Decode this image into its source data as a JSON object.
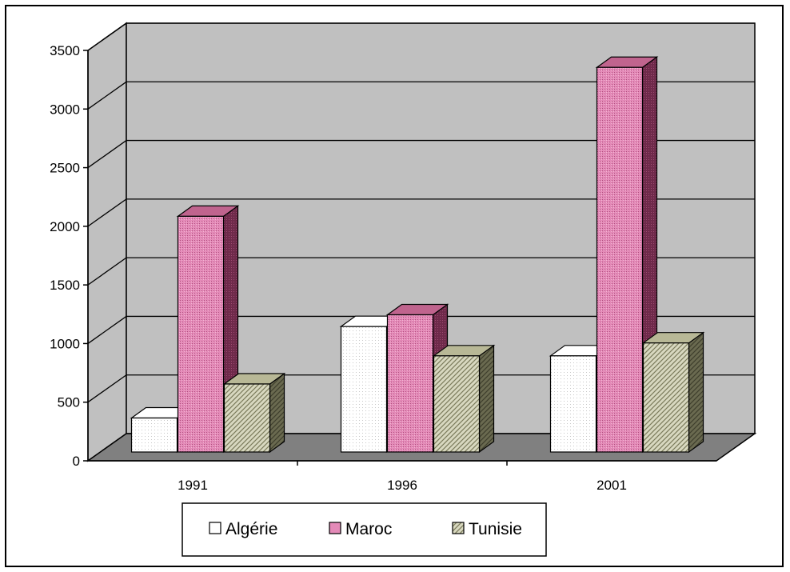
{
  "chart_data": {
    "type": "bar",
    "categories": [
      "1991",
      "1996",
      "2001"
    ],
    "series": [
      {
        "name": "Algérie",
        "values": [
          290,
          1070,
          820
        ],
        "color": "#ffffff"
      },
      {
        "name": "Maroc",
        "values": [
          2010,
          1170,
          3280
        ],
        "color": "#e07fb0"
      },
      {
        "name": "Tunisie",
        "values": [
          580,
          820,
          930
        ],
        "color": "#c8c8a8"
      }
    ],
    "yticks": [
      "0",
      "500",
      "1000",
      "1500",
      "2000",
      "2500",
      "3000",
      "3500"
    ],
    "ylim": [
      0,
      3500
    ],
    "legend_position": "bottom",
    "grid": true,
    "style": "3d-clustered-column",
    "colors": {
      "wall": "#c0c0c0",
      "floor": "#808080"
    }
  }
}
